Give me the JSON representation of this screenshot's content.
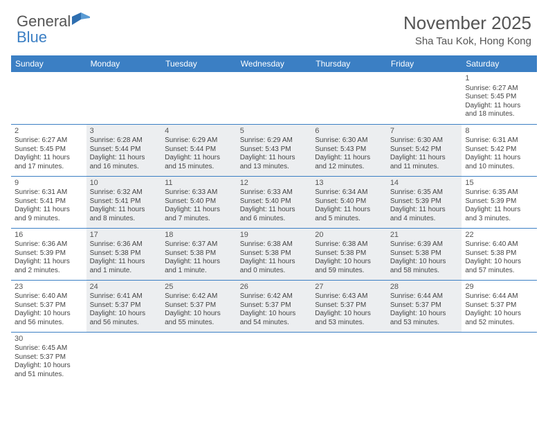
{
  "brand": {
    "word1": "General",
    "word2": "Blue"
  },
  "title": "November 2025",
  "location": "Sha Tau Kok, Hong Kong",
  "colors": {
    "header_bg": "#3b7fc4",
    "shaded_bg": "#eceef0",
    "text": "#444444",
    "rule": "#3b7fc4"
  },
  "day_headers": [
    "Sunday",
    "Monday",
    "Tuesday",
    "Wednesday",
    "Thursday",
    "Friday",
    "Saturday"
  ],
  "weeks": [
    [
      null,
      null,
      null,
      null,
      null,
      null,
      {
        "n": "1",
        "sr": "Sunrise: 6:27 AM",
        "ss": "Sunset: 5:45 PM",
        "d1": "Daylight: 11 hours",
        "d2": "and 18 minutes."
      }
    ],
    [
      {
        "n": "2",
        "sr": "Sunrise: 6:27 AM",
        "ss": "Sunset: 5:45 PM",
        "d1": "Daylight: 11 hours",
        "d2": "and 17 minutes."
      },
      {
        "n": "3",
        "sr": "Sunrise: 6:28 AM",
        "ss": "Sunset: 5:44 PM",
        "d1": "Daylight: 11 hours",
        "d2": "and 16 minutes."
      },
      {
        "n": "4",
        "sr": "Sunrise: 6:29 AM",
        "ss": "Sunset: 5:44 PM",
        "d1": "Daylight: 11 hours",
        "d2": "and 15 minutes."
      },
      {
        "n": "5",
        "sr": "Sunrise: 6:29 AM",
        "ss": "Sunset: 5:43 PM",
        "d1": "Daylight: 11 hours",
        "d2": "and 13 minutes."
      },
      {
        "n": "6",
        "sr": "Sunrise: 6:30 AM",
        "ss": "Sunset: 5:43 PM",
        "d1": "Daylight: 11 hours",
        "d2": "and 12 minutes."
      },
      {
        "n": "7",
        "sr": "Sunrise: 6:30 AM",
        "ss": "Sunset: 5:42 PM",
        "d1": "Daylight: 11 hours",
        "d2": "and 11 minutes."
      },
      {
        "n": "8",
        "sr": "Sunrise: 6:31 AM",
        "ss": "Sunset: 5:42 PM",
        "d1": "Daylight: 11 hours",
        "d2": "and 10 minutes."
      }
    ],
    [
      {
        "n": "9",
        "sr": "Sunrise: 6:31 AM",
        "ss": "Sunset: 5:41 PM",
        "d1": "Daylight: 11 hours",
        "d2": "and 9 minutes."
      },
      {
        "n": "10",
        "sr": "Sunrise: 6:32 AM",
        "ss": "Sunset: 5:41 PM",
        "d1": "Daylight: 11 hours",
        "d2": "and 8 minutes."
      },
      {
        "n": "11",
        "sr": "Sunrise: 6:33 AM",
        "ss": "Sunset: 5:40 PM",
        "d1": "Daylight: 11 hours",
        "d2": "and 7 minutes."
      },
      {
        "n": "12",
        "sr": "Sunrise: 6:33 AM",
        "ss": "Sunset: 5:40 PM",
        "d1": "Daylight: 11 hours",
        "d2": "and 6 minutes."
      },
      {
        "n": "13",
        "sr": "Sunrise: 6:34 AM",
        "ss": "Sunset: 5:40 PM",
        "d1": "Daylight: 11 hours",
        "d2": "and 5 minutes."
      },
      {
        "n": "14",
        "sr": "Sunrise: 6:35 AM",
        "ss": "Sunset: 5:39 PM",
        "d1": "Daylight: 11 hours",
        "d2": "and 4 minutes."
      },
      {
        "n": "15",
        "sr": "Sunrise: 6:35 AM",
        "ss": "Sunset: 5:39 PM",
        "d1": "Daylight: 11 hours",
        "d2": "and 3 minutes."
      }
    ],
    [
      {
        "n": "16",
        "sr": "Sunrise: 6:36 AM",
        "ss": "Sunset: 5:39 PM",
        "d1": "Daylight: 11 hours",
        "d2": "and 2 minutes."
      },
      {
        "n": "17",
        "sr": "Sunrise: 6:36 AM",
        "ss": "Sunset: 5:38 PM",
        "d1": "Daylight: 11 hours",
        "d2": "and 1 minute."
      },
      {
        "n": "18",
        "sr": "Sunrise: 6:37 AM",
        "ss": "Sunset: 5:38 PM",
        "d1": "Daylight: 11 hours",
        "d2": "and 1 minute."
      },
      {
        "n": "19",
        "sr": "Sunrise: 6:38 AM",
        "ss": "Sunset: 5:38 PM",
        "d1": "Daylight: 11 hours",
        "d2": "and 0 minutes."
      },
      {
        "n": "20",
        "sr": "Sunrise: 6:38 AM",
        "ss": "Sunset: 5:38 PM",
        "d1": "Daylight: 10 hours",
        "d2": "and 59 minutes."
      },
      {
        "n": "21",
        "sr": "Sunrise: 6:39 AM",
        "ss": "Sunset: 5:38 PM",
        "d1": "Daylight: 10 hours",
        "d2": "and 58 minutes."
      },
      {
        "n": "22",
        "sr": "Sunrise: 6:40 AM",
        "ss": "Sunset: 5:38 PM",
        "d1": "Daylight: 10 hours",
        "d2": "and 57 minutes."
      }
    ],
    [
      {
        "n": "23",
        "sr": "Sunrise: 6:40 AM",
        "ss": "Sunset: 5:37 PM",
        "d1": "Daylight: 10 hours",
        "d2": "and 56 minutes."
      },
      {
        "n": "24",
        "sr": "Sunrise: 6:41 AM",
        "ss": "Sunset: 5:37 PM",
        "d1": "Daylight: 10 hours",
        "d2": "and 56 minutes."
      },
      {
        "n": "25",
        "sr": "Sunrise: 6:42 AM",
        "ss": "Sunset: 5:37 PM",
        "d1": "Daylight: 10 hours",
        "d2": "and 55 minutes."
      },
      {
        "n": "26",
        "sr": "Sunrise: 6:42 AM",
        "ss": "Sunset: 5:37 PM",
        "d1": "Daylight: 10 hours",
        "d2": "and 54 minutes."
      },
      {
        "n": "27",
        "sr": "Sunrise: 6:43 AM",
        "ss": "Sunset: 5:37 PM",
        "d1": "Daylight: 10 hours",
        "d2": "and 53 minutes."
      },
      {
        "n": "28",
        "sr": "Sunrise: 6:44 AM",
        "ss": "Sunset: 5:37 PM",
        "d1": "Daylight: 10 hours",
        "d2": "and 53 minutes."
      },
      {
        "n": "29",
        "sr": "Sunrise: 6:44 AM",
        "ss": "Sunset: 5:37 PM",
        "d1": "Daylight: 10 hours",
        "d2": "and 52 minutes."
      }
    ],
    [
      {
        "n": "30",
        "sr": "Sunrise: 6:45 AM",
        "ss": "Sunset: 5:37 PM",
        "d1": "Daylight: 10 hours",
        "d2": "and 51 minutes."
      },
      null,
      null,
      null,
      null,
      null,
      null
    ]
  ]
}
